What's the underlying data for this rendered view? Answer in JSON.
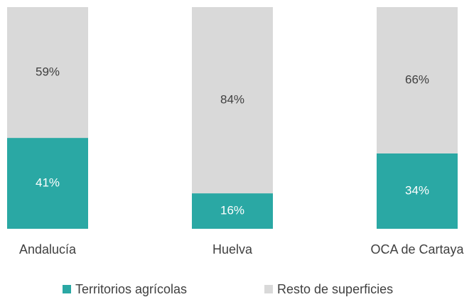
{
  "chart_data": {
    "type": "stacked_bar",
    "categories": [
      "Andalucía",
      "Huelva",
      "OCA de Cartaya"
    ],
    "series": [
      {
        "name": "Territorios agrícolas",
        "color": "#2aa8a4",
        "values": [
          41,
          16,
          34
        ],
        "value_labels": [
          "41%",
          "16%",
          "34%"
        ],
        "label_color": "#ffffff"
      },
      {
        "name": "Resto de superficies",
        "color": "#d9d9d9",
        "values": [
          59,
          84,
          66
        ],
        "value_labels": [
          "59%",
          "84%",
          "66%"
        ],
        "label_color": "#404040"
      }
    ],
    "legend": "bottom"
  }
}
